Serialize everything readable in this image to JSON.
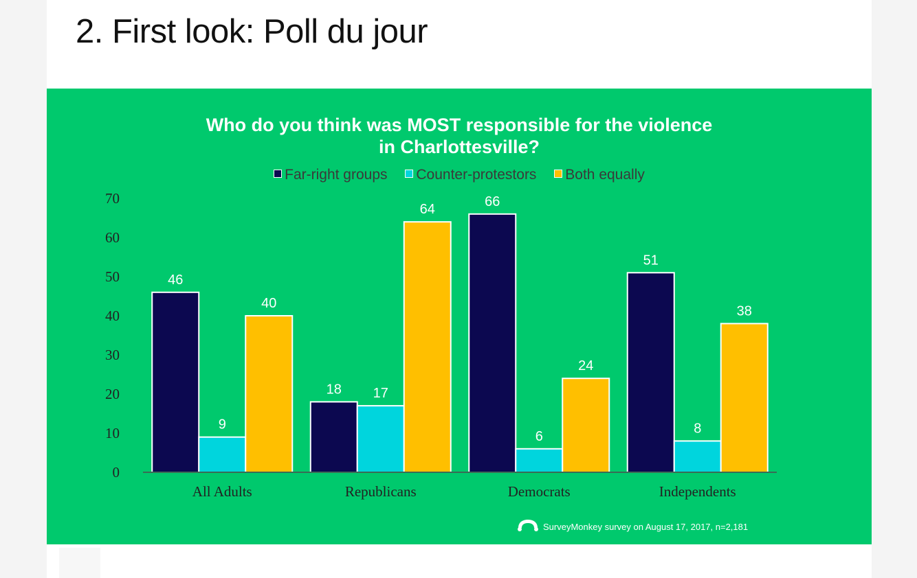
{
  "page": {
    "heading": "2. First look: Poll du jour"
  },
  "colors": {
    "panel_background": "#00c96d",
    "far_right": "#0c0850",
    "counter_protestors": "#00d5dd",
    "both_equally": "#ffbf00"
  },
  "footer": {
    "note": "SurveyMonkey survey on August 17, 2017, n=2,181",
    "logo_icon": "surveymonkey-logo-icon"
  },
  "chart_data": {
    "type": "bar",
    "title_line1": "Who do you think was MOST responsible for the violence",
    "title_line2": "in Charlottesville?",
    "categories": [
      "All Adults",
      "Republicans",
      "Democrats",
      "Independents"
    ],
    "series": [
      {
        "name": "Far-right groups",
        "values": [
          46,
          18,
          66,
          51
        ],
        "color": "#0c0850"
      },
      {
        "name": "Counter-protestors",
        "values": [
          9,
          17,
          6,
          8
        ],
        "color": "#00d5dd"
      },
      {
        "name": "Both equally",
        "values": [
          40,
          64,
          24,
          38
        ],
        "color": "#ffbf00"
      }
    ],
    "ylim": [
      0,
      70
    ],
    "yticks": [
      0,
      10,
      20,
      30,
      40,
      50,
      60,
      70
    ],
    "legend_position": "top-center",
    "grid": false,
    "data_labels": true
  }
}
